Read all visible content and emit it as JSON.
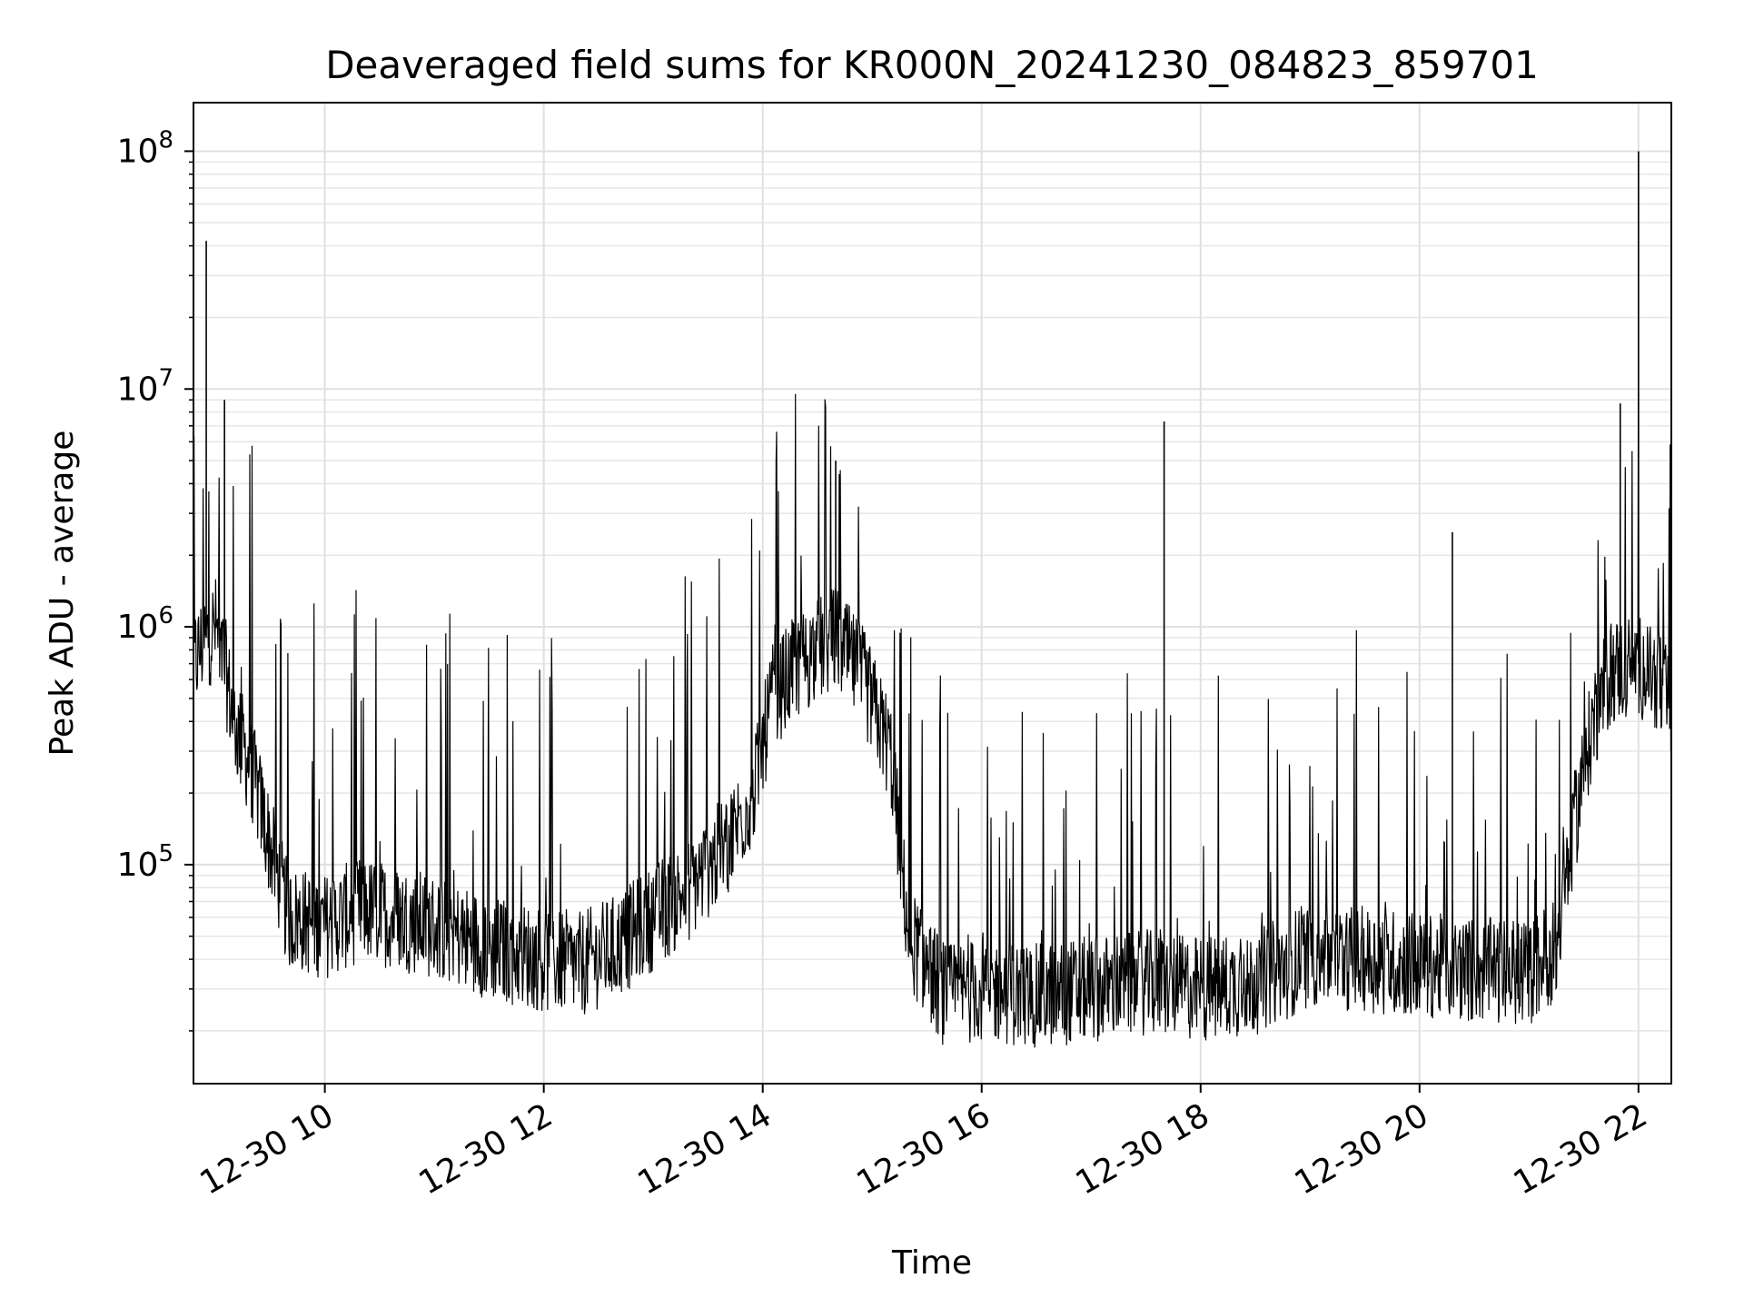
{
  "chart_data": {
    "type": "line",
    "title": "Deaveraged field sums for KR000N_20241230_084823_859701",
    "xlabel": "Time",
    "ylabel": "Peak ADU - average",
    "y_scale": "log",
    "ylim": [
      12000,
      160000000
    ],
    "xlim": [
      "12-30 08:48",
      "12-30 22:18"
    ],
    "grid": true,
    "line_color": "#000000",
    "x_ticks": [
      {
        "label": "12-30 10",
        "value": "12-30 10:00"
      },
      {
        "label": "12-30 12",
        "value": "12-30 12:00"
      },
      {
        "label": "12-30 14",
        "value": "12-30 14:00"
      },
      {
        "label": "12-30 16",
        "value": "12-30 16:00"
      },
      {
        "label": "12-30 18",
        "value": "12-30 18:00"
      },
      {
        "label": "12-30 20",
        "value": "12-30 20:00"
      },
      {
        "label": "12-30 22",
        "value": "12-30 22:00"
      }
    ],
    "y_ticks": [
      {
        "base": "10",
        "exp": "5",
        "value": 100000
      },
      {
        "base": "10",
        "exp": "6",
        "value": 1000000
      },
      {
        "base": "10",
        "exp": "7",
        "value": 10000000
      },
      {
        "base": "10",
        "exp": "8",
        "value": 100000000
      }
    ],
    "series": [
      {
        "x": [
          "12-30 08:48",
          "12-30 08:55",
          "12-30 09:00",
          "12-30 09:05",
          "12-30 09:10",
          "12-30 09:20",
          "12-30 09:30",
          "12-30 09:40",
          "12-30 10:00",
          "12-30 10:20",
          "12-30 10:40",
          "12-30 11:00",
          "12-30 11:30",
          "12-30 12:00",
          "12-30 12:20",
          "12-30 12:40",
          "12-30 13:00",
          "12-30 13:20",
          "12-30 13:40",
          "12-30 13:55",
          "12-30 14:05",
          "12-30 14:20",
          "12-30 14:40",
          "12-30 14:55",
          "12-30 15:10",
          "12-30 15:20",
          "12-30 15:40",
          "12-30 16:00",
          "12-30 16:30",
          "12-30 17:00",
          "12-30 17:30",
          "12-30 18:00",
          "12-30 18:30",
          "12-30 19:00",
          "12-30 19:30",
          "12-30 20:00",
          "12-30 20:30",
          "12-30 21:00",
          "12-30 21:15",
          "12-30 21:25",
          "12-30 21:35",
          "12-30 21:45",
          "12-30 22:00",
          "12-30 22:10",
          "12-30 22:18"
        ],
        "y": [
          700000,
          900000,
          1000000,
          700000,
          400000,
          250000,
          120000,
          60000,
          55000,
          65000,
          60000,
          55000,
          45000,
          40000,
          38000,
          45000,
          60000,
          80000,
          120000,
          200000,
          500000,
          700000,
          900000,
          600000,
          300000,
          50000,
          28000,
          30000,
          28000,
          30000,
          32000,
          30000,
          32000,
          42000,
          40000,
          38000,
          36000,
          35000,
          45000,
          150000,
          400000,
          650000,
          700000,
          600000,
          450000
        ]
      }
    ],
    "spikes": [
      {
        "x": "12-30 08:55",
        "y": 42000000
      },
      {
        "x": "12-30 09:05",
        "y": 9000000
      },
      {
        "x": "12-30 14:40",
        "y": 5000000
      },
      {
        "x": "12-30 17:40",
        "y": 7300000
      },
      {
        "x": "12-30 20:18",
        "y": 2500000
      },
      {
        "x": "12-30 21:50",
        "y": 8700000
      },
      {
        "x": "12-30 22:00",
        "y": 100000000
      }
    ]
  }
}
